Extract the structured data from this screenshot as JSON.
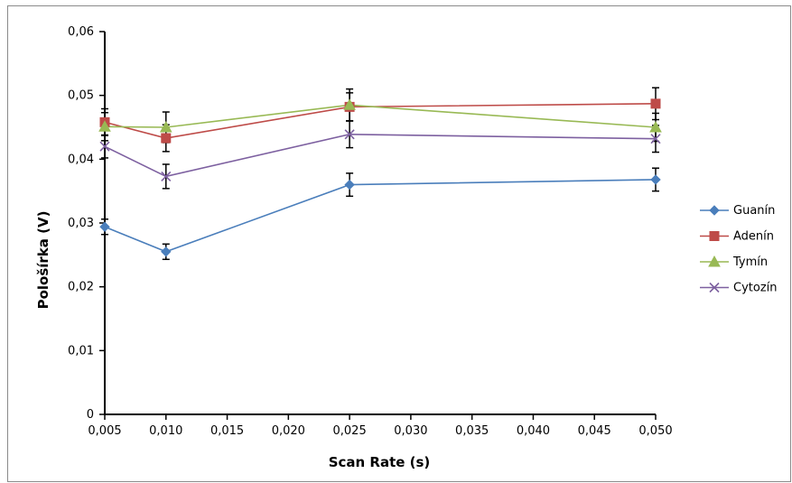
{
  "chart_data": {
    "type": "line",
    "xlabel": "Scan Rate (s)",
    "ylabel": "Pološírka (V)",
    "x_ticks": [
      "0,005",
      "0,010",
      "0,015",
      "0,020",
      "0,025",
      "0,030",
      "0,035",
      "0,040",
      "0,045",
      "0,050"
    ],
    "y_ticks": [
      "0",
      "0,01",
      "0,02",
      "0,03",
      "0,04",
      "0,05",
      "0,06"
    ],
    "xlim": [
      0.005,
      0.05
    ],
    "ylim": [
      0,
      0.06
    ],
    "x": [
      0.005,
      0.01,
      0.025,
      0.05
    ],
    "legend_position": "right",
    "grid": false,
    "series": [
      {
        "name": "Guanín",
        "color": "#4a7ebb",
        "marker": "diamond",
        "values": [
          0.0294,
          0.0255,
          0.036,
          0.0368
        ],
        "errors": [
          0.0012,
          0.0012,
          0.0018,
          0.0018
        ]
      },
      {
        "name": "Adenín",
        "color": "#be4b48",
        "marker": "square",
        "values": [
          0.0458,
          0.0433,
          0.0482,
          0.0487
        ],
        "errors": [
          0.0021,
          0.0021,
          0.0022,
          0.0025
        ]
      },
      {
        "name": "Tymín",
        "color": "#98b954",
        "marker": "triangle",
        "values": [
          0.0451,
          0.045,
          0.0485,
          0.045
        ],
        "errors": [
          0.0022,
          0.0024,
          0.0025,
          0.0022
        ]
      },
      {
        "name": "Cytozín",
        "color": "#7d60a0",
        "marker": "x",
        "values": [
          0.042,
          0.0373,
          0.0439,
          0.0432
        ],
        "errors": [
          0.0018,
          0.0019,
          0.0021,
          0.0021
        ]
      }
    ]
  }
}
